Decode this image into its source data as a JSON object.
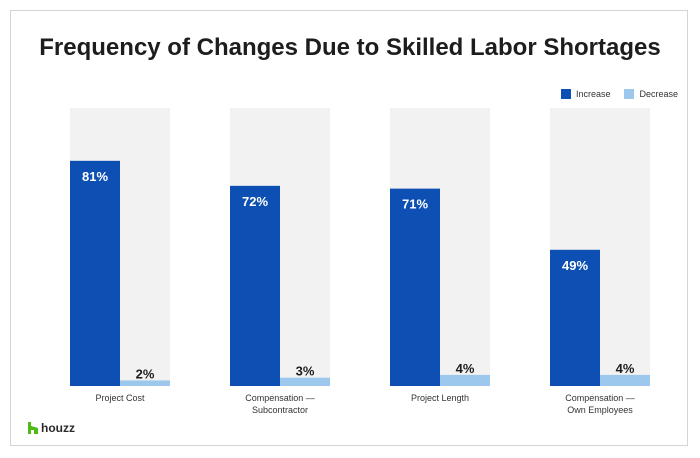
{
  "chart_data": {
    "type": "bar",
    "title": "Frequency of Changes Due to Skilled Labor Shortages",
    "categories": [
      [
        "Project Cost"
      ],
      [
        "Compensation —",
        "Subcontractor"
      ],
      [
        "Project Length"
      ],
      [
        "Compensation —",
        "Own Employees"
      ]
    ],
    "series": [
      {
        "name": "Increase",
        "color": "#0d4fb3",
        "values": [
          81,
          72,
          71,
          49
        ],
        "labels": [
          "81%",
          "72%",
          "71%",
          "49%"
        ]
      },
      {
        "name": "Decrease",
        "color": "#9dc8ee",
        "values": [
          2,
          3,
          4,
          4
        ],
        "labels": [
          "2%",
          "3%",
          "4%",
          "4%"
        ]
      }
    ],
    "ylim": [
      0,
      100
    ],
    "panel_color": "#f2f2f2",
    "legend_position": "top-right",
    "grid": false
  },
  "brand": {
    "name": "houzz",
    "icon": "houzz-logo-icon",
    "color": "#4dbc15"
  }
}
